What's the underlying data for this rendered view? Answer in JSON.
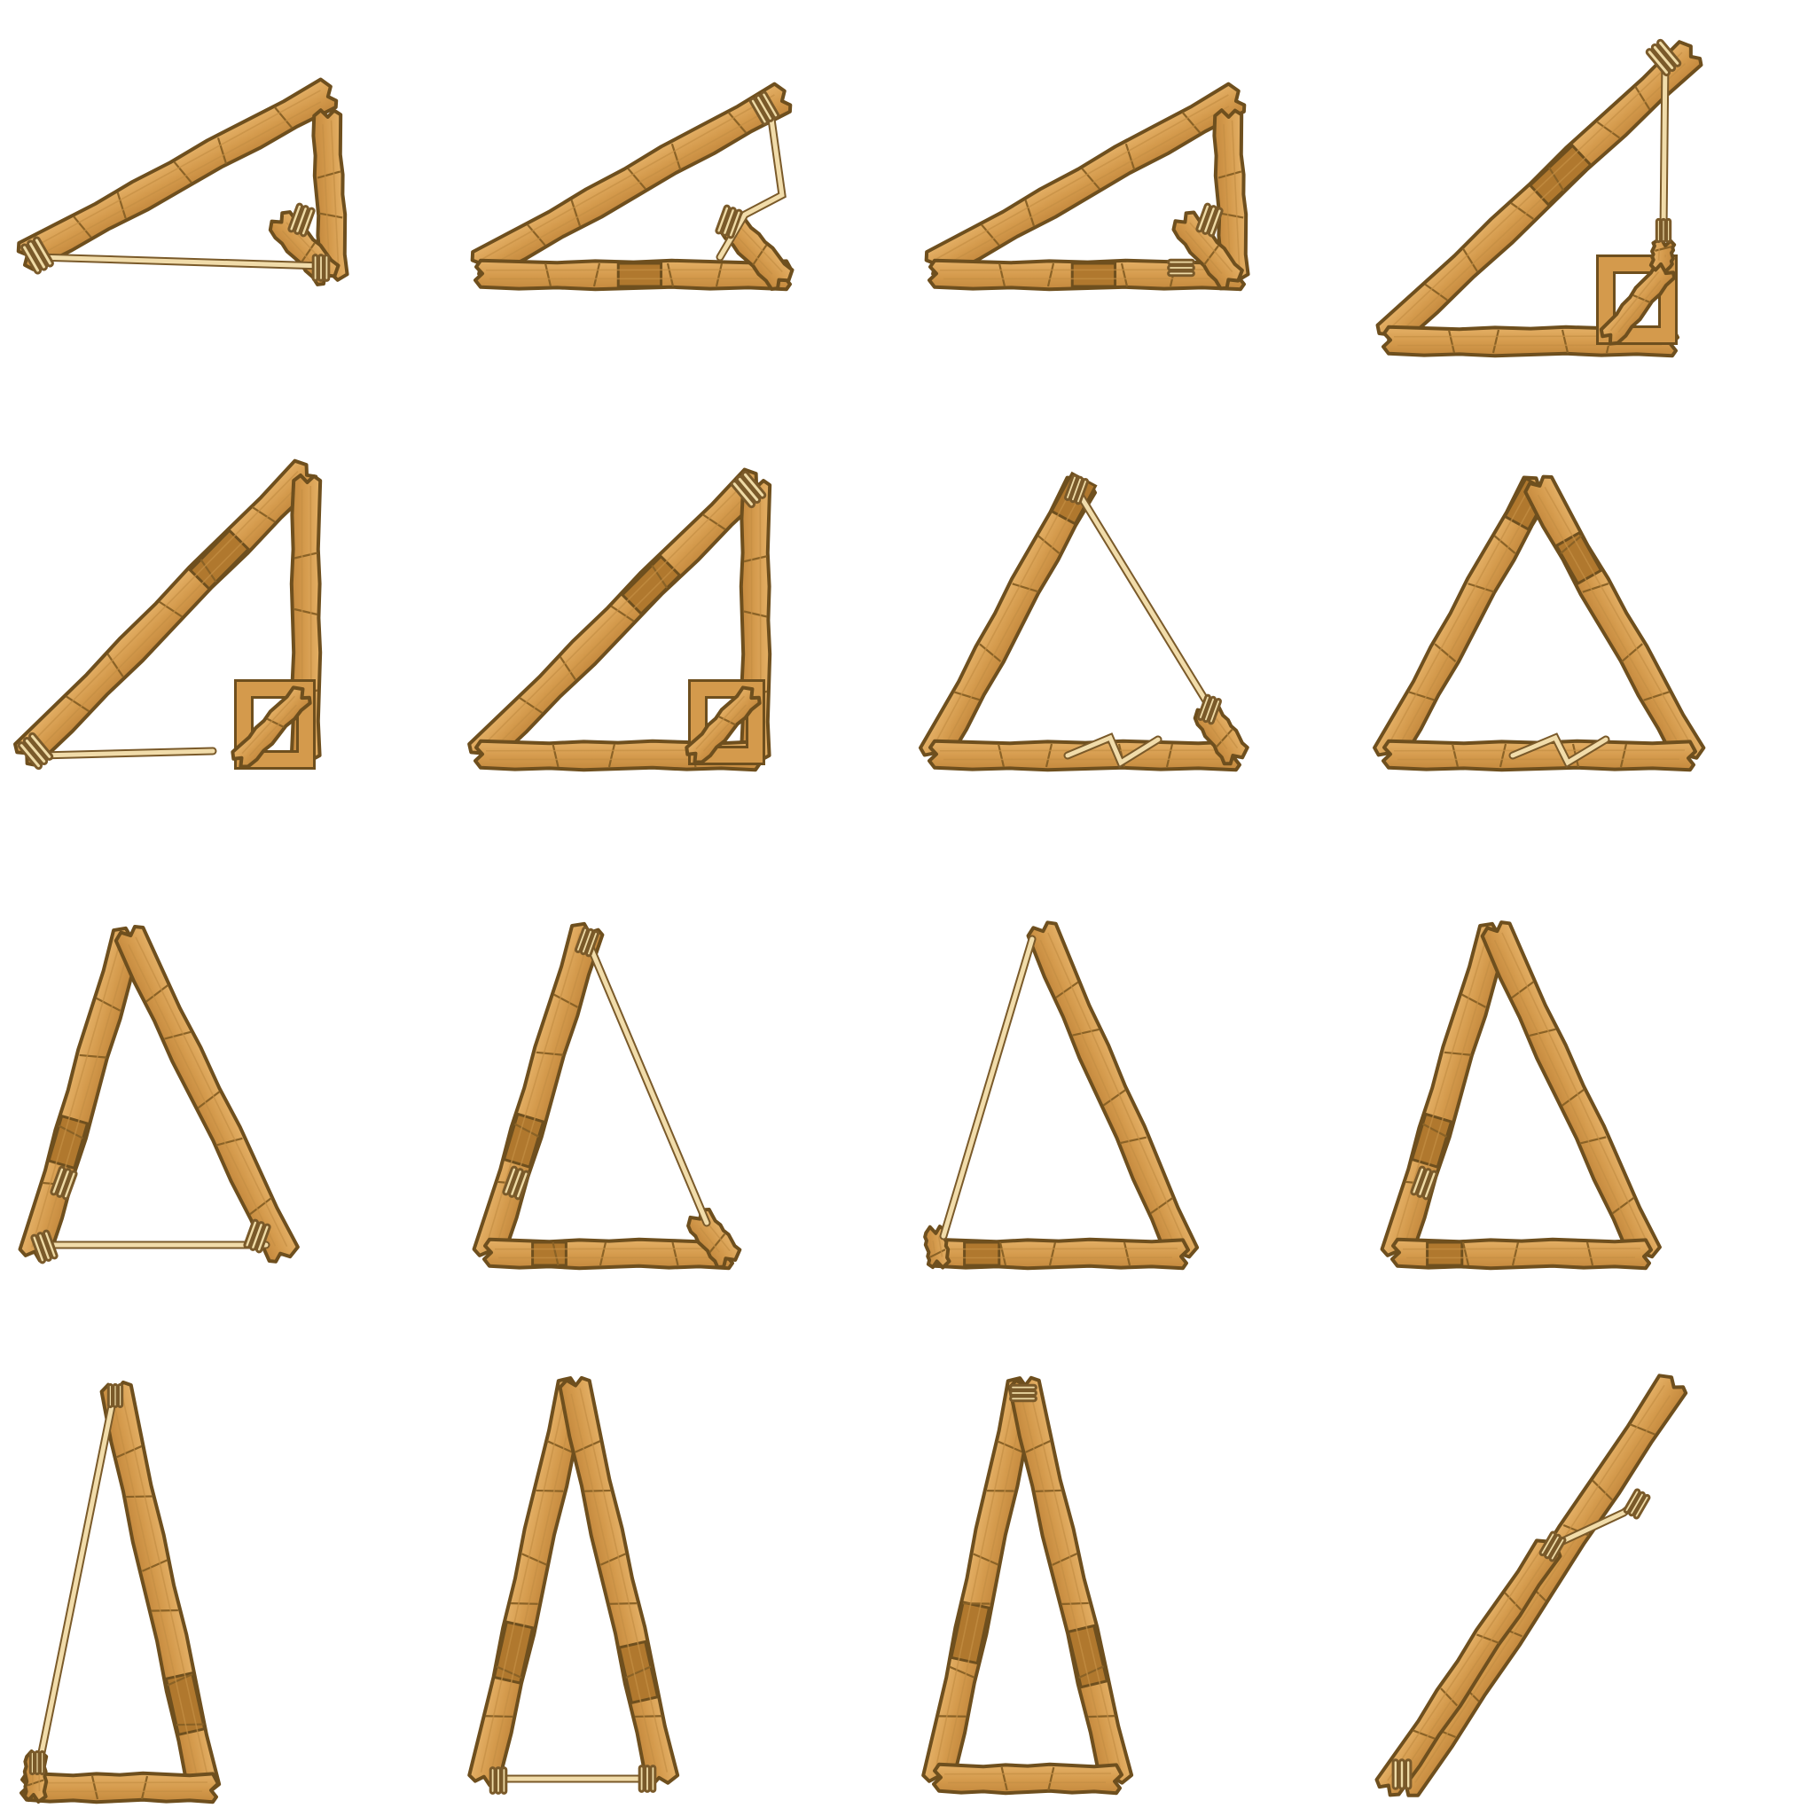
{
  "sheet": {
    "columns": 4,
    "rows": 4,
    "background": "#ffffff"
  },
  "palette": {
    "wood_light": "#e0aa5e",
    "wood_mid": "#cf9448",
    "wood_dark": "#b0782e",
    "wood_outline": "#6e4f1e",
    "rope_fill": "#f1dcaa",
    "rope_outline": "#7a5a2a"
  },
  "sprites": [
    {
      "id": "frame-01",
      "shape": "right-triangle-low",
      "open_side": "bottom",
      "joint": "rope",
      "corner_brace": "diagonal-bundle"
    },
    {
      "id": "frame-02",
      "shape": "right-triangle-low",
      "open_side": "right",
      "joint": "rope",
      "corner_brace": "diagonal-bundle"
    },
    {
      "id": "frame-03",
      "shape": "right-triangle-low",
      "open_side": "none",
      "joint": "lashed",
      "corner_brace": "diagonal-bundle"
    },
    {
      "id": "frame-04",
      "shape": "right-triangle-tall",
      "open_side": "right",
      "joint": "rope",
      "corner_brace": "square-frame"
    },
    {
      "id": "frame-05",
      "shape": "right-triangle-tall",
      "open_side": "bottom",
      "joint": "rope",
      "corner_brace": "square-frame"
    },
    {
      "id": "frame-06",
      "shape": "right-triangle-tall",
      "open_side": "none",
      "joint": "lashed",
      "corner_brace": "square-frame"
    },
    {
      "id": "frame-07",
      "shape": "equilateral",
      "open_side": "right",
      "joint": "rope",
      "corner_brace": "zigzag-rope"
    },
    {
      "id": "frame-08",
      "shape": "equilateral",
      "open_side": "none",
      "joint": "lashed",
      "corner_brace": "zigzag-rope"
    },
    {
      "id": "frame-09",
      "shape": "isosceles",
      "open_side": "bottom",
      "joint": "rope",
      "corner_brace": "none"
    },
    {
      "id": "frame-10",
      "shape": "isosceles",
      "open_side": "right",
      "joint": "rope",
      "corner_brace": "none"
    },
    {
      "id": "frame-11",
      "shape": "isosceles",
      "open_side": "left",
      "joint": "rope",
      "corner_brace": "none"
    },
    {
      "id": "frame-12",
      "shape": "isosceles",
      "open_side": "none",
      "joint": "lashed",
      "corner_brace": "none"
    },
    {
      "id": "frame-13",
      "shape": "tall-narrow",
      "open_side": "left",
      "joint": "rope",
      "corner_brace": "none"
    },
    {
      "id": "frame-14",
      "shape": "tall-narrow",
      "open_side": "bottom",
      "joint": "rope",
      "corner_brace": "none"
    },
    {
      "id": "frame-15",
      "shape": "tall-narrow",
      "open_side": "none",
      "joint": "lashed",
      "corner_brace": "none"
    },
    {
      "id": "frame-16",
      "shape": "collapsed",
      "open_side": "top",
      "joint": "rope",
      "corner_brace": "none"
    }
  ]
}
